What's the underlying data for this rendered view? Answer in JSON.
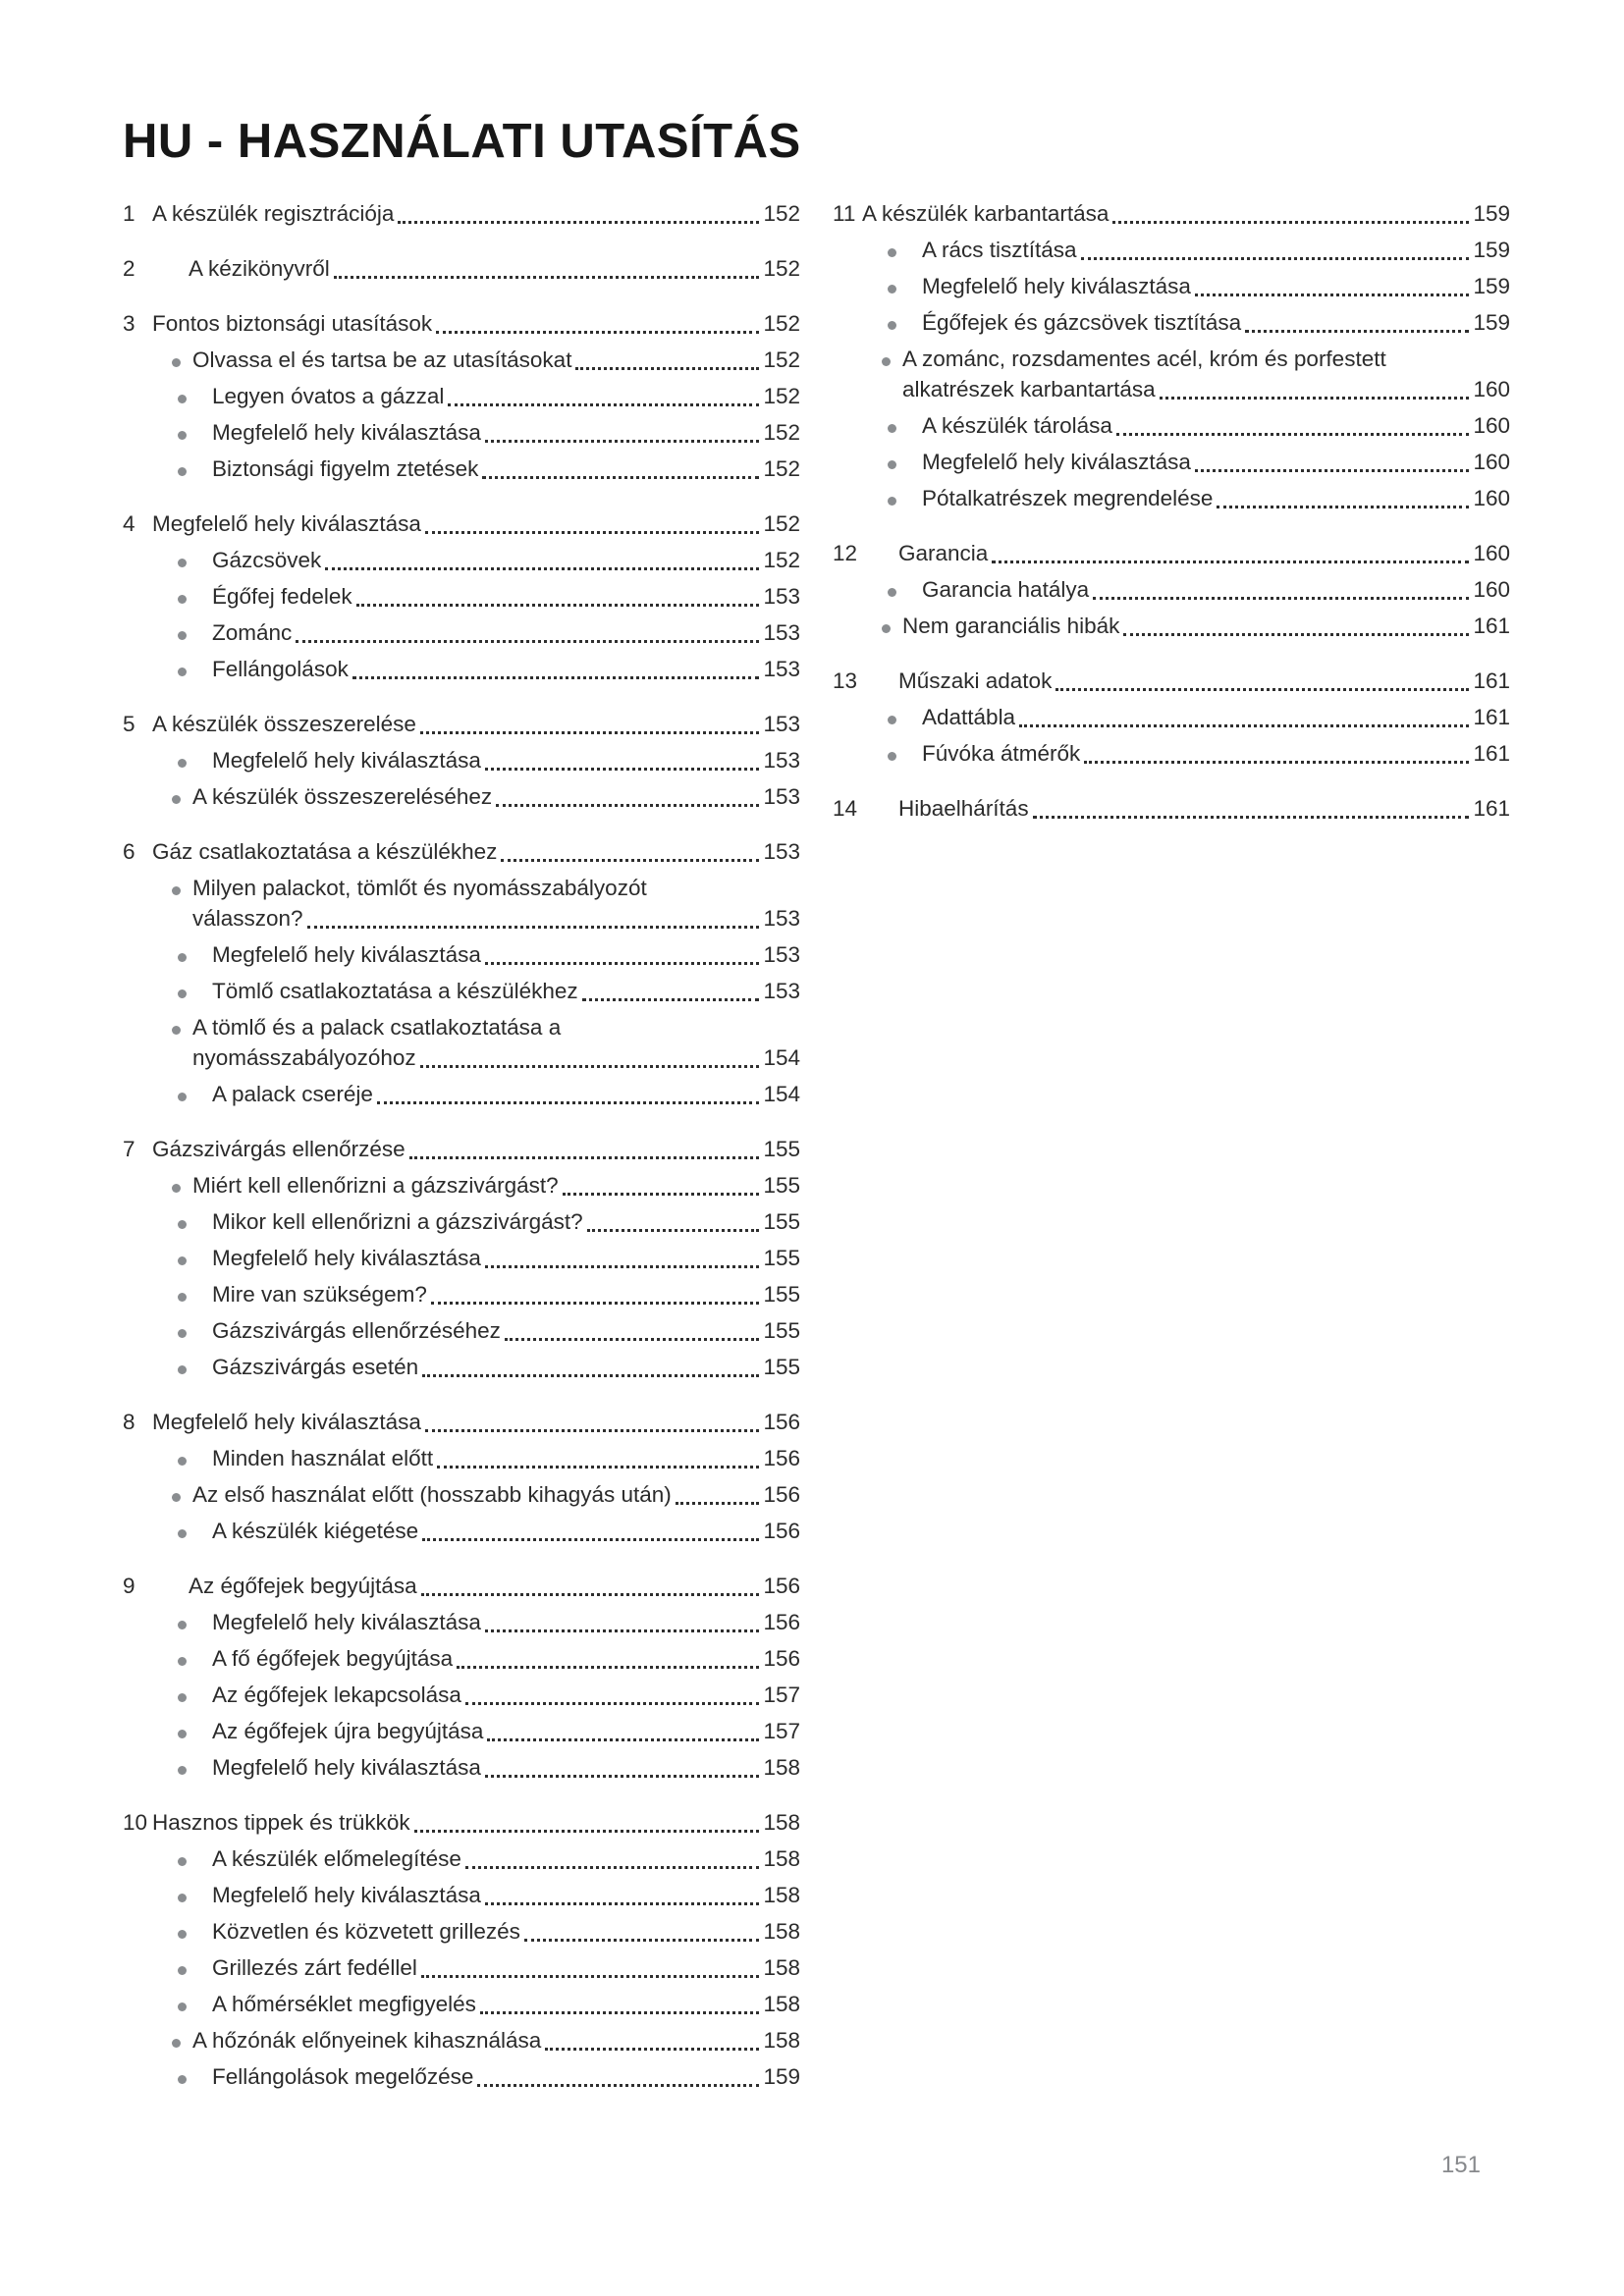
{
  "header": {
    "title": "HU - HASZNÁLATI UTASÍTÁS"
  },
  "footer": {
    "page_number": "151"
  },
  "colors": {
    "text": "#2b2b2b",
    "bullet": "#8a8d90",
    "folio": "#87898c"
  },
  "toc": {
    "columns": [
      {
        "sections": [
          {
            "num": "1",
            "title": "A készülék regisztrációja",
            "page": "152"
          },
          {
            "num": "2",
            "title": "A kézikönyvről",
            "page": "152",
            "title_indent": true
          },
          {
            "num": "3",
            "title": "Fontos biztonsági utasítások",
            "page": "152",
            "items": [
              {
                "label": "Olvassa el és tartsa be az utasításokat",
                "page": "152",
                "tight": true
              },
              {
                "label": "Legyen óvatos a gázzal",
                "page": "152"
              },
              {
                "label": "Megfelelő hely kiválasztása",
                "page": "152"
              },
              {
                "label": "Biztonsági figyelm ztetések",
                "page": "152"
              }
            ]
          },
          {
            "num": "4",
            "title": "Megfelelő hely kiválasztása",
            "page": "152",
            "items": [
              {
                "label": "Gázcsövek",
                "page": "152"
              },
              {
                "label": "Égőfej fedelek",
                "page": "153"
              },
              {
                "label": "Zománc",
                "page": "153"
              },
              {
                "label": "Fellángolások",
                "page": "153"
              }
            ]
          },
          {
            "num": "5",
            "title": "A készülék összeszerelése",
            "page": "153",
            "items": [
              {
                "label": "Megfelelő hely kiválasztása",
                "page": "153"
              },
              {
                "label": "A készülék összeszereléséhez",
                "page": "153",
                "tight": true
              }
            ]
          },
          {
            "num": "6",
            "title": "Gáz csatlakoztatása a készülékhez",
            "page": "153",
            "items": [
              {
                "label_lines": [
                  "Milyen palackot, tömlőt és nyomásszabályozót",
                  "válasszon?"
                ],
                "page": "153",
                "tight": true
              },
              {
                "label": "Megfelelő hely kiválasztása",
                "page": "153"
              },
              {
                "label": "Tömlő csatlakoztatása a készülékhez",
                "page": "153"
              },
              {
                "label_lines": [
                  "A tömlő és a palack csatlakoztatása a",
                  "nyomásszabályozóhoz"
                ],
                "page": "154",
                "tight": true
              },
              {
                "label": "A palack cseréje",
                "page": "154"
              }
            ]
          },
          {
            "num": "7",
            "title": "Gázszivárgás ellenőrzése",
            "page": "155",
            "items": [
              {
                "label": "Miért kell ellenőrizni a gázszivárgást?",
                "page": "155",
                "tight": true
              },
              {
                "label": "Mikor kell ellenőrizni a gázszivárgást?",
                "page": "155"
              },
              {
                "label": "Megfelelő hely kiválasztása",
                "page": "155"
              },
              {
                "label": "Mire van szükségem?",
                "page": "155"
              },
              {
                "label": "Gázszivárgás ellenőrzéséhez",
                "page": "155"
              },
              {
                "label": "Gázszivárgás esetén",
                "page": "155"
              }
            ]
          },
          {
            "num": "8",
            "title": "Megfelelő hely kiválasztása",
            "page": "156",
            "items": [
              {
                "label": "Minden használat előtt",
                "page": "156"
              },
              {
                "label": "Az első használat előtt (hosszabb kihagyás után)",
                "page": "156",
                "tight": true
              },
              {
                "label": "A készülék kiégetése",
                "page": "156"
              }
            ]
          },
          {
            "num": "9",
            "title": "Az égőfejek begyújtása",
            "page": "156",
            "title_indent": true,
            "items": [
              {
                "label": "Megfelelő hely kiválasztása",
                "page": "156"
              },
              {
                "label": "A fő égőfejek begyújtása",
                "page": "156"
              },
              {
                "label": "Az égőfejek lekapcsolása",
                "page": "157"
              },
              {
                "label": "Az égőfejek újra begyújtása",
                "page": "157"
              },
              {
                "label": "Megfelelő hely kiválasztása",
                "page": "158"
              }
            ]
          },
          {
            "num": "10",
            "title": "Hasznos tippek és trükkök",
            "page": "158",
            "items": [
              {
                "label": "A készülék előmelegítése",
                "page": "158"
              },
              {
                "label": "Megfelelő hely kiválasztása",
                "page": "158"
              },
              {
                "label": "Közvetlen és közvetett grillezés",
                "page": "158"
              },
              {
                "label": "Grillezés zárt fedéllel",
                "page": "158"
              },
              {
                "label": "A hőmérséklet megfigyelés",
                "page": "158"
              },
              {
                "label": "A hőzónák előnyeinek kihasználása",
                "page": "158",
                "tight": true
              },
              {
                "label": "Fellángolások megelőzése",
                "page": "159"
              }
            ]
          }
        ]
      },
      {
        "sections": [
          {
            "num": "11",
            "title": "A készülék karbantartása",
            "page": "159",
            "items": [
              {
                "label": "A rács tisztítása",
                "page": "159"
              },
              {
                "label": "Megfelelő hely kiválasztása",
                "page": "159"
              },
              {
                "label": "Égőfejek és gázcsövek tisztítása",
                "page": "159"
              },
              {
                "label_lines": [
                  "A zománc, rozsdamentes acél, króm és porfestett",
                  "alkatrészek karbantartása"
                ],
                "page": "160",
                "tight": true
              },
              {
                "label": "A készülék tárolása",
                "page": "160"
              },
              {
                "label": "Megfelelő hely kiválasztása",
                "page": "160"
              },
              {
                "label": "Pótalkatrészek megrendelése",
                "page": "160"
              }
            ]
          },
          {
            "num": "12",
            "title": "Garancia",
            "page": "160",
            "title_indent": true,
            "items": [
              {
                "label": "Garancia hatálya",
                "page": "160"
              },
              {
                "label": "Nem garanciális hibák",
                "page": "161",
                "tight": true
              }
            ]
          },
          {
            "num": "13",
            "title": "Műszaki adatok",
            "page": "161",
            "title_indent": true,
            "items": [
              {
                "label": "Adattábla",
                "page": "161"
              },
              {
                "label": "Fúvóka átmérők",
                "page": "161"
              }
            ]
          },
          {
            "num": "14",
            "title": "Hibaelhárítás",
            "page": "161",
            "title_indent": true
          }
        ]
      }
    ]
  }
}
